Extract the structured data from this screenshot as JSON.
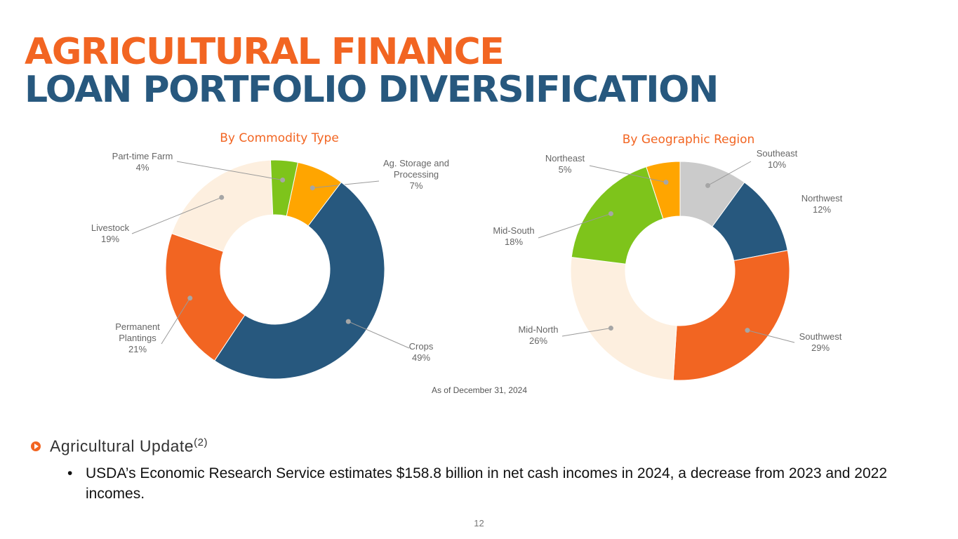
{
  "header": {
    "title_line1": "AGRICULTURAL FINANCE",
    "title_line2": "LOAN PORTFOLIO DIVERSIFICATION"
  },
  "chart_data": [
    {
      "type": "pie",
      "title": "By Commodity Type",
      "donut": true,
      "slices": [
        {
          "label": "Ag. Storage and Processing",
          "value": 7,
          "color": "#FFA500"
        },
        {
          "label": "Crops",
          "value": 49,
          "color": "#27587E"
        },
        {
          "label": "Permanent Plantings",
          "value": 21,
          "color": "#F26522"
        },
        {
          "label": "Livestock",
          "value": 19,
          "color": "#FDEFDF"
        },
        {
          "label": "Part-time Farm",
          "value": 4,
          "color": "#7EC41B"
        }
      ]
    },
    {
      "type": "pie",
      "title": "By Geographic Region",
      "donut": true,
      "slices": [
        {
          "label": "Southeast",
          "value": 10,
          "color": "#CBCBCB"
        },
        {
          "label": "Northwest",
          "value": 12,
          "color": "#27587E"
        },
        {
          "label": "Southwest",
          "value": 29,
          "color": "#F26522"
        },
        {
          "label": "Mid-North",
          "value": 26,
          "color": "#FDEFDF"
        },
        {
          "label": "Mid-South",
          "value": 18,
          "color": "#7EC41B"
        },
        {
          "label": "Northeast",
          "value": 5,
          "color": "#FFA500"
        }
      ]
    }
  ],
  "as_of": "As of December 31, 2024",
  "section": {
    "label": "Agricultural Update",
    "superscript": "(2)",
    "bullets": [
      "USDA’s Economic Research Service estimates $158.8 billion in net cash incomes in 2024, a decrease from 2023 and 2022 incomes."
    ]
  },
  "page_number": "12"
}
